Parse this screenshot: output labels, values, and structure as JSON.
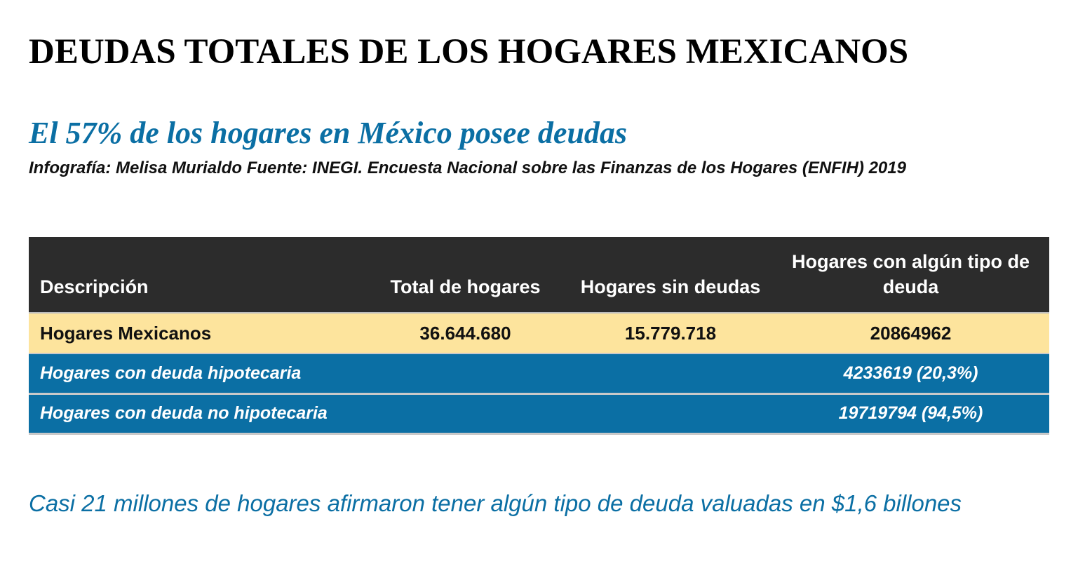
{
  "header": {
    "title": "DEUDAS TOTALES DE LOS HOGARES MEXICANOS",
    "subtitle": "El 57% de los hogares en México posee deudas",
    "credit": "Infografía: Melisa Murialdo Fuente: INEGI. Encuesta Nacional sobre las Finanzas de los Hogares (ENFIH) 2019"
  },
  "chart_data": {
    "type": "table",
    "columns": [
      "Descripción",
      "Total de hogares",
      "Hogares sin deudas",
      "Hogares con algún tipo de deuda"
    ],
    "rows": [
      [
        "Hogares Mexicanos",
        "36.644.680",
        "15.779.718",
        "20864962"
      ],
      [
        "Hogares con deuda hipotecaria",
        "",
        "",
        "4233619 (20,3%)"
      ],
      [
        "Hogares con deuda no hipotecaria",
        "",
        "",
        "19719794 (94,5%)"
      ]
    ]
  },
  "note": "Casi 21 millones de hogares afirmaron tener algún tipo de deuda valuadas en $1,6 billones",
  "colors": {
    "header_bg": "#2c2c2c",
    "highlight_row": "#fde49d",
    "accent_blue": "#0b6fa4"
  }
}
